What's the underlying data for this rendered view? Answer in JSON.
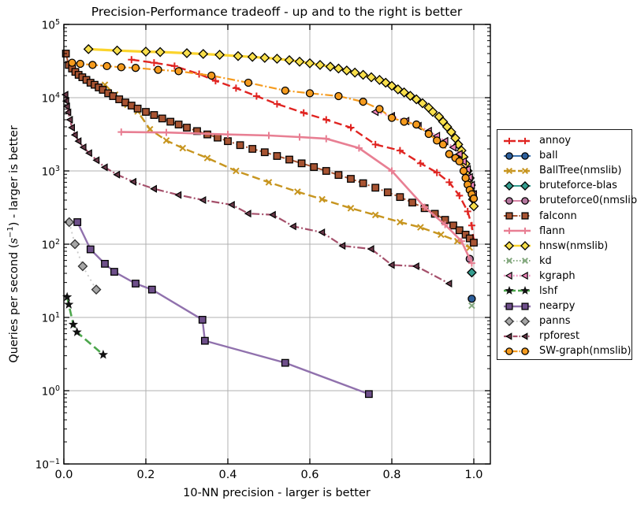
{
  "title": "Precision-Performance tradeoff - up and to the right is better",
  "xlabel": "10-NN precision - larger is better",
  "ylabel_parts": {
    "pre": "Queries per second (",
    "var": "s",
    "exp": "−1",
    "post": ") - larger is better"
  },
  "chart_data": {
    "type": "line",
    "title": "Precision-Performance tradeoff - up and to the right is better",
    "xlabel": "10-NN precision - larger is better",
    "ylabel": "Queries per second (s⁻¹) - larger is better",
    "xlim": [
      0.0,
      1.04
    ],
    "ylim": [
      0.1,
      100000
    ],
    "y_scale": "log",
    "grid": true,
    "legend_position": "right outside",
    "x_ticks": {
      "labels": [
        "0.0",
        "0.2",
        "0.4",
        "0.6",
        "0.8",
        "1.0"
      ],
      "values": [
        0.0,
        0.2,
        0.4,
        0.6,
        0.8,
        1.0
      ]
    },
    "y_ticks": {
      "base": "10",
      "exponents": [
        "5",
        "4",
        "3",
        "2",
        "1",
        "0",
        "−1"
      ],
      "values": [
        100000,
        10000,
        1000,
        100,
        10,
        1,
        0.1
      ]
    },
    "grid_color": "#b0b0b0",
    "axis_color": "#000000",
    "series": [
      {
        "name": "annoy",
        "color": "#e02421",
        "line": "dashed",
        "line_width": 2.4,
        "marker": "plus",
        "marker_fill": "#e02421",
        "marker_edge": "#e02421",
        "marker_size": 9,
        "points": [
          [
            0.165,
            33000
          ],
          [
            0.22,
            30000
          ],
          [
            0.27,
            27000
          ],
          [
            0.33,
            21000
          ],
          [
            0.37,
            17000
          ],
          [
            0.42,
            13500
          ],
          [
            0.47,
            10500
          ],
          [
            0.52,
            8200
          ],
          [
            0.585,
            6200
          ],
          [
            0.64,
            5000
          ],
          [
            0.7,
            3900
          ],
          [
            0.76,
            2300
          ],
          [
            0.82,
            1900
          ],
          [
            0.87,
            1270
          ],
          [
            0.91,
            950
          ],
          [
            0.94,
            700
          ],
          [
            0.965,
            460
          ],
          [
            0.985,
            280
          ],
          [
            0.995,
            180
          ],
          [
            1.0,
            110
          ]
        ]
      },
      {
        "name": "ball",
        "color": "#3b73b0",
        "line": "solid",
        "line_width": 2,
        "marker": "circle",
        "marker_fill": "#2d5f9b",
        "marker_edge": "#000000",
        "marker_size": 9,
        "points": [
          [
            0.995,
            18
          ]
        ]
      },
      {
        "name": "BallTree(nmslib)",
        "color": "#c7951f",
        "line": "dashed",
        "line_width": 2.4,
        "marker": "x",
        "marker_fill": "#c7951f",
        "marker_edge": "#c7951f",
        "marker_size": 9,
        "points": [
          [
            0.1,
            15000
          ],
          [
            0.125,
            11000
          ],
          [
            0.155,
            8000
          ],
          [
            0.18,
            6500
          ],
          [
            0.21,
            3700
          ],
          [
            0.25,
            2600
          ],
          [
            0.29,
            2050
          ],
          [
            0.35,
            1500
          ],
          [
            0.42,
            1000
          ],
          [
            0.5,
            700
          ],
          [
            0.57,
            520
          ],
          [
            0.63,
            410
          ],
          [
            0.7,
            310
          ],
          [
            0.76,
            250
          ],
          [
            0.82,
            200
          ],
          [
            0.87,
            170
          ],
          [
            0.92,
            135
          ],
          [
            0.96,
            110
          ],
          [
            0.99,
            90
          ]
        ]
      },
      {
        "name": "bruteforce-blas",
        "color": "#359e90",
        "line": "solid",
        "line_width": 2,
        "marker": "diamond",
        "marker_fill": "#359e90",
        "marker_edge": "#000000",
        "marker_size": 11,
        "points": [
          [
            0.995,
            41
          ]
        ]
      },
      {
        "name": "bruteforce0(nmslib)",
        "color": "#d884a5",
        "line": "solid",
        "line_width": 2,
        "marker": "circle",
        "marker_fill": "#b5779f",
        "marker_edge": "#000000",
        "marker_size": 9,
        "points": [
          [
            0.99,
            63
          ]
        ]
      },
      {
        "name": "falconn",
        "color": "#a85432",
        "line": "dashdot",
        "line_width": 2,
        "marker": "square",
        "marker_fill": "#a85432",
        "marker_edge": "#000000",
        "marker_size": 8.5,
        "points": [
          [
            0.005,
            40000
          ],
          [
            0.012,
            28000
          ],
          [
            0.02,
            25000
          ],
          [
            0.028,
            22500
          ],
          [
            0.036,
            20500
          ],
          [
            0.045,
            19000
          ],
          [
            0.055,
            17500
          ],
          [
            0.065,
            16000
          ],
          [
            0.075,
            15000
          ],
          [
            0.085,
            13800
          ],
          [
            0.095,
            12800
          ],
          [
            0.108,
            11500
          ],
          [
            0.12,
            10500
          ],
          [
            0.135,
            9500
          ],
          [
            0.15,
            8600
          ],
          [
            0.165,
            7800
          ],
          [
            0.18,
            7100
          ],
          [
            0.2,
            6400
          ],
          [
            0.22,
            5800
          ],
          [
            0.24,
            5200
          ],
          [
            0.26,
            4700
          ],
          [
            0.28,
            4300
          ],
          [
            0.3,
            3900
          ],
          [
            0.325,
            3500
          ],
          [
            0.35,
            3150
          ],
          [
            0.375,
            2850
          ],
          [
            0.4,
            2550
          ],
          [
            0.43,
            2250
          ],
          [
            0.46,
            2000
          ],
          [
            0.49,
            1800
          ],
          [
            0.52,
            1600
          ],
          [
            0.55,
            1430
          ],
          [
            0.58,
            1270
          ],
          [
            0.61,
            1130
          ],
          [
            0.64,
            1000
          ],
          [
            0.67,
            880
          ],
          [
            0.7,
            780
          ],
          [
            0.73,
            680
          ],
          [
            0.76,
            590
          ],
          [
            0.79,
            510
          ],
          [
            0.82,
            440
          ],
          [
            0.85,
            370
          ],
          [
            0.88,
            310
          ],
          [
            0.905,
            260
          ],
          [
            0.93,
            215
          ],
          [
            0.95,
            180
          ],
          [
            0.965,
            155
          ],
          [
            0.98,
            135
          ],
          [
            0.99,
            120
          ],
          [
            1.0,
            105
          ]
        ]
      },
      {
        "name": "flann",
        "color": "#e87f93",
        "line": "solid",
        "line_width": 2.6,
        "marker": "plus",
        "marker_fill": "#e87f93",
        "marker_edge": "#e87f93",
        "marker_size": 9,
        "points": [
          [
            0.14,
            3400
          ],
          [
            0.25,
            3350
          ],
          [
            0.4,
            3150
          ],
          [
            0.5,
            3050
          ],
          [
            0.575,
            2900
          ],
          [
            0.64,
            2750
          ],
          [
            0.72,
            2050
          ],
          [
            0.8,
            1000
          ],
          [
            0.88,
            320
          ],
          [
            0.93,
            185
          ],
          [
            0.97,
            110
          ],
          [
            0.995,
            55
          ]
        ]
      },
      {
        "name": "hnsw(nmslib)",
        "color": "#fbd42c",
        "line": "solid",
        "line_width": 3.2,
        "marker": "diamond",
        "marker_fill": "#f8df4b",
        "marker_edge": "#000000",
        "marker_size": 11,
        "points": [
          [
            0.06,
            46000
          ],
          [
            0.13,
            44000
          ],
          [
            0.2,
            42500
          ],
          [
            0.235,
            42000
          ],
          [
            0.3,
            40500
          ],
          [
            0.34,
            39500
          ],
          [
            0.38,
            38500
          ],
          [
            0.425,
            37000
          ],
          [
            0.46,
            36000
          ],
          [
            0.49,
            35000
          ],
          [
            0.52,
            34000
          ],
          [
            0.55,
            32500
          ],
          [
            0.575,
            31000
          ],
          [
            0.6,
            29500
          ],
          [
            0.625,
            28000
          ],
          [
            0.65,
            26500
          ],
          [
            0.67,
            25000
          ],
          [
            0.69,
            23500
          ],
          [
            0.71,
            22000
          ],
          [
            0.73,
            20500
          ],
          [
            0.75,
            19000
          ],
          [
            0.77,
            17500
          ],
          [
            0.785,
            16000
          ],
          [
            0.8,
            14500
          ],
          [
            0.815,
            13000
          ],
          [
            0.83,
            11800
          ],
          [
            0.845,
            10600
          ],
          [
            0.86,
            9500
          ],
          [
            0.875,
            8400
          ],
          [
            0.89,
            7300
          ],
          [
            0.9,
            6400
          ],
          [
            0.915,
            5500
          ],
          [
            0.925,
            4700
          ],
          [
            0.935,
            4000
          ],
          [
            0.945,
            3400
          ],
          [
            0.955,
            2800
          ],
          [
            0.962,
            2300
          ],
          [
            0.97,
            1900
          ],
          [
            0.975,
            1550
          ],
          [
            0.98,
            1250
          ],
          [
            0.985,
            1000
          ],
          [
            0.99,
            800
          ],
          [
            0.993,
            640
          ],
          [
            0.996,
            510
          ],
          [
            0.998,
            410
          ],
          [
            1.0,
            330
          ]
        ]
      },
      {
        "name": "kd",
        "color": "#84a97f",
        "line": "dotted",
        "line_width": 2,
        "marker": "x",
        "marker_fill": "#84a97f",
        "marker_edge": "#84a97f",
        "marker_size": 9,
        "points": [
          [
            0.995,
            14.5
          ]
        ]
      },
      {
        "name": "kgraph",
        "color": "#f08bbe",
        "line": "dotted",
        "line_width": 2.4,
        "marker": "tri-left",
        "marker_fill": "#ee84b9",
        "marker_edge": "#000000",
        "marker_size": 9,
        "points": [
          [
            0.76,
            6400
          ],
          [
            0.8,
            5600
          ],
          [
            0.835,
            4800
          ],
          [
            0.865,
            4100
          ],
          [
            0.89,
            3500
          ],
          [
            0.91,
            3000
          ],
          [
            0.93,
            2550
          ],
          [
            0.95,
            2100
          ],
          [
            0.965,
            1700
          ],
          [
            0.975,
            1350
          ],
          [
            0.985,
            1050
          ],
          [
            0.99,
            820
          ],
          [
            0.995,
            640
          ],
          [
            1.0,
            480
          ]
        ]
      },
      {
        "name": "lshf",
        "color": "#4ca64c",
        "line": "dashed",
        "line_width": 2.6,
        "marker": "star",
        "marker_fill": "#111111",
        "marker_edge": "#111111",
        "marker_size": 10,
        "points": [
          [
            0.008,
            19
          ],
          [
            0.012,
            15
          ],
          [
            0.023,
            8
          ],
          [
            0.032,
            6.3
          ],
          [
            0.096,
            3.1
          ]
        ]
      },
      {
        "name": "nearpy",
        "color": "#9071ad",
        "line": "solid",
        "line_width": 2.4,
        "marker": "square",
        "marker_fill": "#6e4f8a",
        "marker_edge": "#000000",
        "marker_size": 8.5,
        "points": [
          [
            0.033,
            200
          ],
          [
            0.065,
            85
          ],
          [
            0.1,
            54
          ],
          [
            0.123,
            42
          ],
          [
            0.175,
            29
          ],
          [
            0.215,
            24
          ],
          [
            0.338,
            9.3
          ],
          [
            0.344,
            4.8
          ],
          [
            0.54,
            2.4
          ],
          [
            0.744,
            0.9
          ]
        ]
      },
      {
        "name": "panns",
        "color": "#c9c9c9",
        "line": "dotted",
        "line_width": 1.8,
        "marker": "diamond",
        "marker_fill": "#a6a6a6",
        "marker_edge": "#333333",
        "marker_size": 11,
        "points": [
          [
            0.013,
            200
          ],
          [
            0.027,
            100
          ],
          [
            0.046,
            50
          ],
          [
            0.079,
            24
          ]
        ]
      },
      {
        "name": "rpforest",
        "color": "#a5506b",
        "line": "dashdot",
        "line_width": 2.2,
        "marker": "tri-left",
        "marker_fill": "#6b3a4a",
        "marker_edge": "#000000",
        "marker_size": 8,
        "points": [
          [
            0.004,
            11000
          ],
          [
            0.006,
            9000
          ],
          [
            0.008,
            7600
          ],
          [
            0.011,
            6300
          ],
          [
            0.015,
            5000
          ],
          [
            0.02,
            3900
          ],
          [
            0.027,
            3100
          ],
          [
            0.036,
            2550
          ],
          [
            0.048,
            2100
          ],
          [
            0.062,
            1750
          ],
          [
            0.08,
            1400
          ],
          [
            0.1,
            1120
          ],
          [
            0.13,
            890
          ],
          [
            0.17,
            710
          ],
          [
            0.22,
            570
          ],
          [
            0.28,
            470
          ],
          [
            0.34,
            400
          ],
          [
            0.41,
            345
          ],
          [
            0.45,
            262
          ],
          [
            0.51,
            252
          ],
          [
            0.56,
            175
          ],
          [
            0.63,
            145
          ],
          [
            0.68,
            95
          ],
          [
            0.75,
            86
          ],
          [
            0.8,
            52
          ],
          [
            0.86,
            50
          ],
          [
            0.94,
            29
          ]
        ]
      },
      {
        "name": "SW-graph(nmslib)",
        "color": "#f59b1e",
        "line": "dashdot",
        "line_width": 2.2,
        "marker": "circle",
        "marker_fill": "#f59b1e",
        "marker_edge": "#000000",
        "marker_size": 9,
        "points": [
          [
            0.02,
            30000
          ],
          [
            0.04,
            29000
          ],
          [
            0.07,
            28000
          ],
          [
            0.105,
            27000
          ],
          [
            0.14,
            26000
          ],
          [
            0.175,
            25500
          ],
          [
            0.23,
            24000
          ],
          [
            0.28,
            23000
          ],
          [
            0.36,
            20000
          ],
          [
            0.45,
            16000
          ],
          [
            0.54,
            12500
          ],
          [
            0.6,
            11500
          ],
          [
            0.67,
            10500
          ],
          [
            0.73,
            8800
          ],
          [
            0.77,
            7000
          ],
          [
            0.8,
            5300
          ],
          [
            0.83,
            4700
          ],
          [
            0.86,
            4300
          ],
          [
            0.89,
            3200
          ],
          [
            0.91,
            2600
          ],
          [
            0.925,
            2300
          ],
          [
            0.94,
            1700
          ],
          [
            0.955,
            1500
          ],
          [
            0.965,
            1350
          ],
          [
            0.975,
            1000
          ],
          [
            0.98,
            800
          ],
          [
            0.985,
            650
          ],
          [
            0.99,
            550
          ],
          [
            0.995,
            480
          ],
          [
            1.0,
            420
          ]
        ]
      }
    ]
  }
}
